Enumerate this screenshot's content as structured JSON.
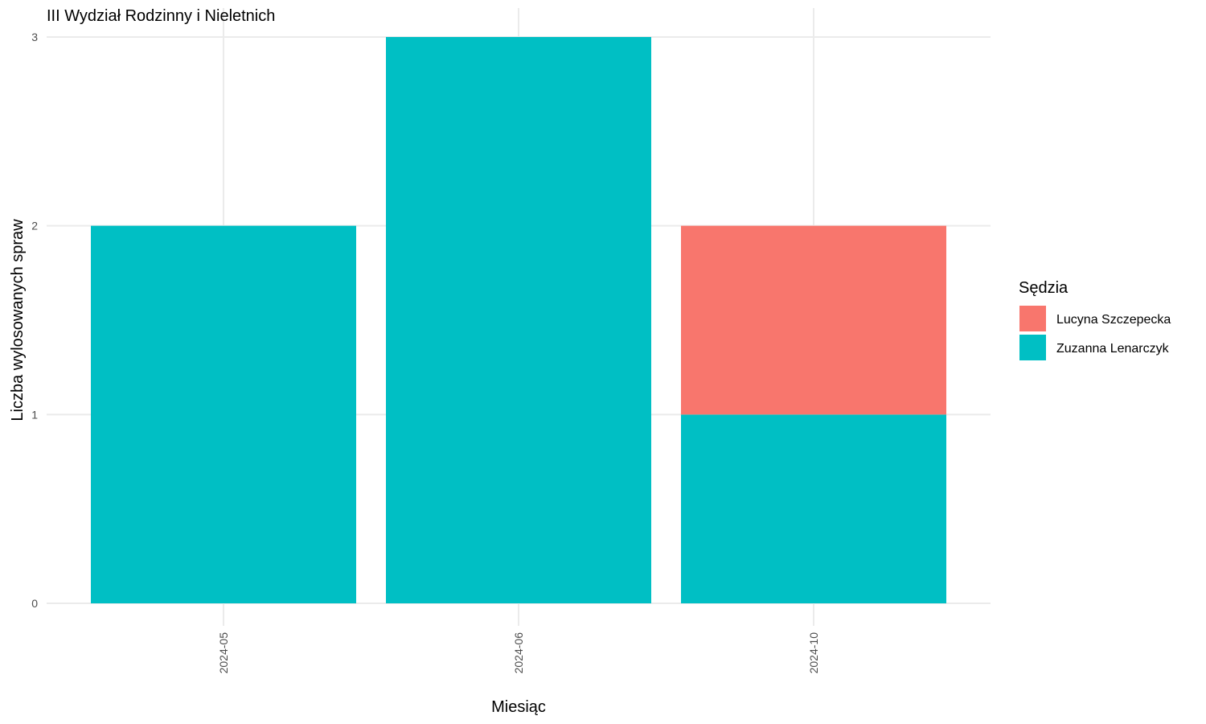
{
  "chart_data": {
    "type": "bar",
    "stacked": true,
    "title": "III Wydział Rodzinny i Nieletnich",
    "xlabel": "Miesiąc",
    "ylabel": "Liczba wylosowanych spraw",
    "categories": [
      "2024-05",
      "2024-06",
      "2024-10"
    ],
    "yticks": [
      0,
      1,
      2,
      3
    ],
    "ylim": [
      0,
      3
    ],
    "grid": true,
    "legend": {
      "title": "Sędzia",
      "placement": "right"
    },
    "series": [
      {
        "name": "Zuzanna Lenarczyk",
        "color": "#00BFC4",
        "values": [
          2,
          3,
          1
        ]
      },
      {
        "name": "Lucyna Szczepecka",
        "color": "#F8766D",
        "values": [
          0,
          0,
          1
        ]
      }
    ],
    "legend_order": [
      "Lucyna Szczepecka",
      "Zuzanna Lenarczyk"
    ]
  }
}
